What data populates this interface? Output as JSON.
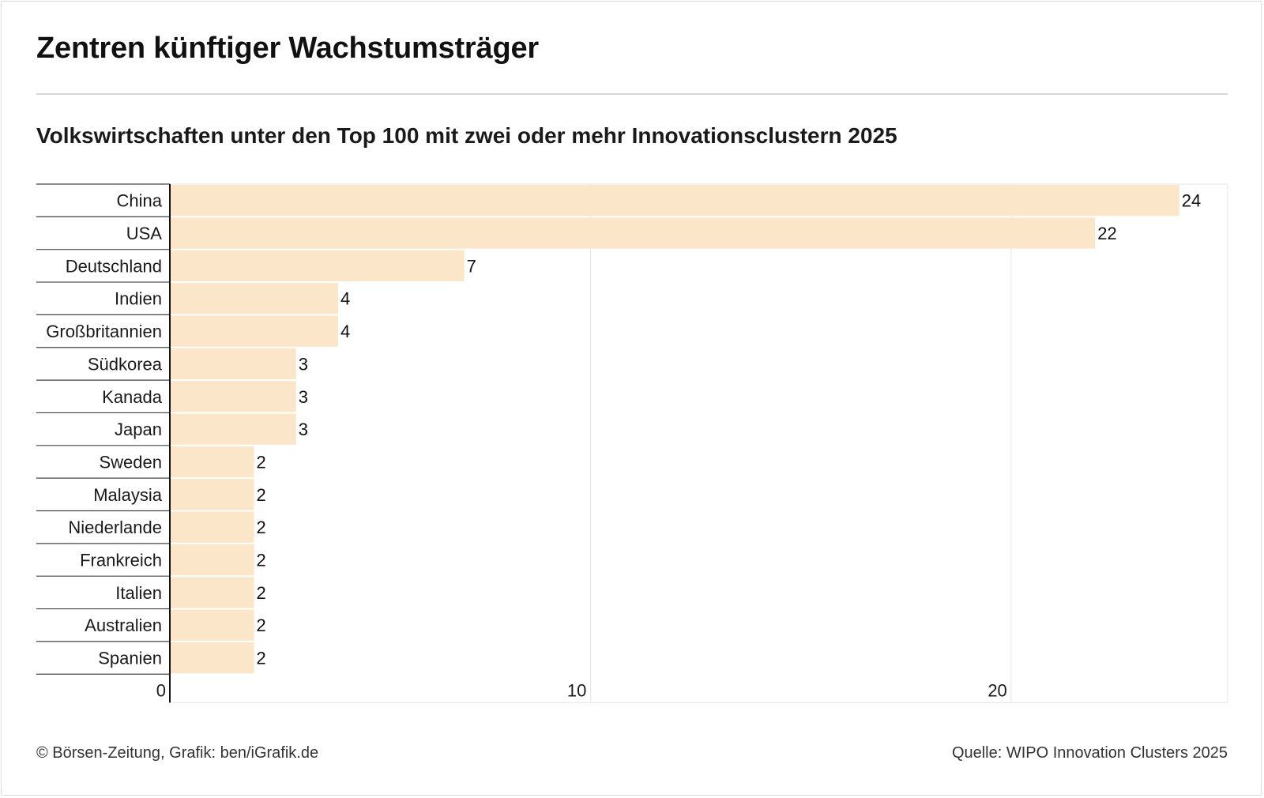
{
  "header": {
    "title": "Zentren künftiger Wachstumsträger",
    "subtitle": "Volkswirtschaften unter den Top 100 mit zwei oder mehr Innovationsclustern 2025"
  },
  "footer": {
    "credit": "© Börsen-Zeitung, Grafik: ben/iGrafik.de",
    "source": "Quelle: WIPO Innovation Clusters 2025"
  },
  "colors": {
    "bar": "#fce6c9",
    "axis": "#111111",
    "grid": "#e6e6e6",
    "row_separator": "#444444"
  },
  "chart_data": {
    "type": "bar",
    "orientation": "horizontal",
    "categories": [
      "China",
      "USA",
      "Deutschland",
      "Indien",
      "Großbritannien",
      "Südkorea",
      "Kanada",
      "Japan",
      "Sweden",
      "Malaysia",
      "Niederlande",
      "Frankreich",
      "Italien",
      "Australien",
      "Spanien"
    ],
    "values": [
      24,
      22,
      7,
      4,
      4,
      3,
      3,
      3,
      2,
      2,
      2,
      2,
      2,
      2,
      2
    ],
    "xlim": [
      0,
      25.15
    ],
    "x_ticks": [
      "0",
      "10",
      "20"
    ],
    "x_tick_values": [
      0,
      10,
      20
    ],
    "grid": true,
    "data_labels": true
  }
}
